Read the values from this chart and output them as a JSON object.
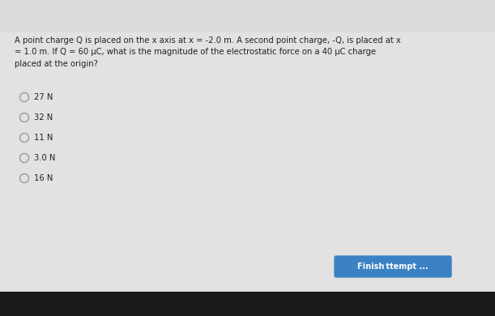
{
  "background_color": "#d8d8d8",
  "content_bg": "#e8e8e8",
  "question_text_lines": [
    "A point charge Q is placed on the x axis at x = -2.0 m. A second point charge, -Q, is placed at x",
    "= 1.0 m. If Q = 60 μC, what is the magnitude of the electrostatic force on a 40 μC charge",
    "placed at the origin?"
  ],
  "options": [
    "27 N",
    "32 N",
    "11 N",
    "3.0 N",
    "16 N"
  ],
  "button_text": "Finish ttempt ...",
  "button_color": "#3a82c4",
  "button_text_color": "#ffffff",
  "text_color": "#222222",
  "font_size_question": 7.2,
  "font_size_options": 7.2,
  "circle_color": "#999999",
  "bottom_bar_color": "#1a1a1a"
}
